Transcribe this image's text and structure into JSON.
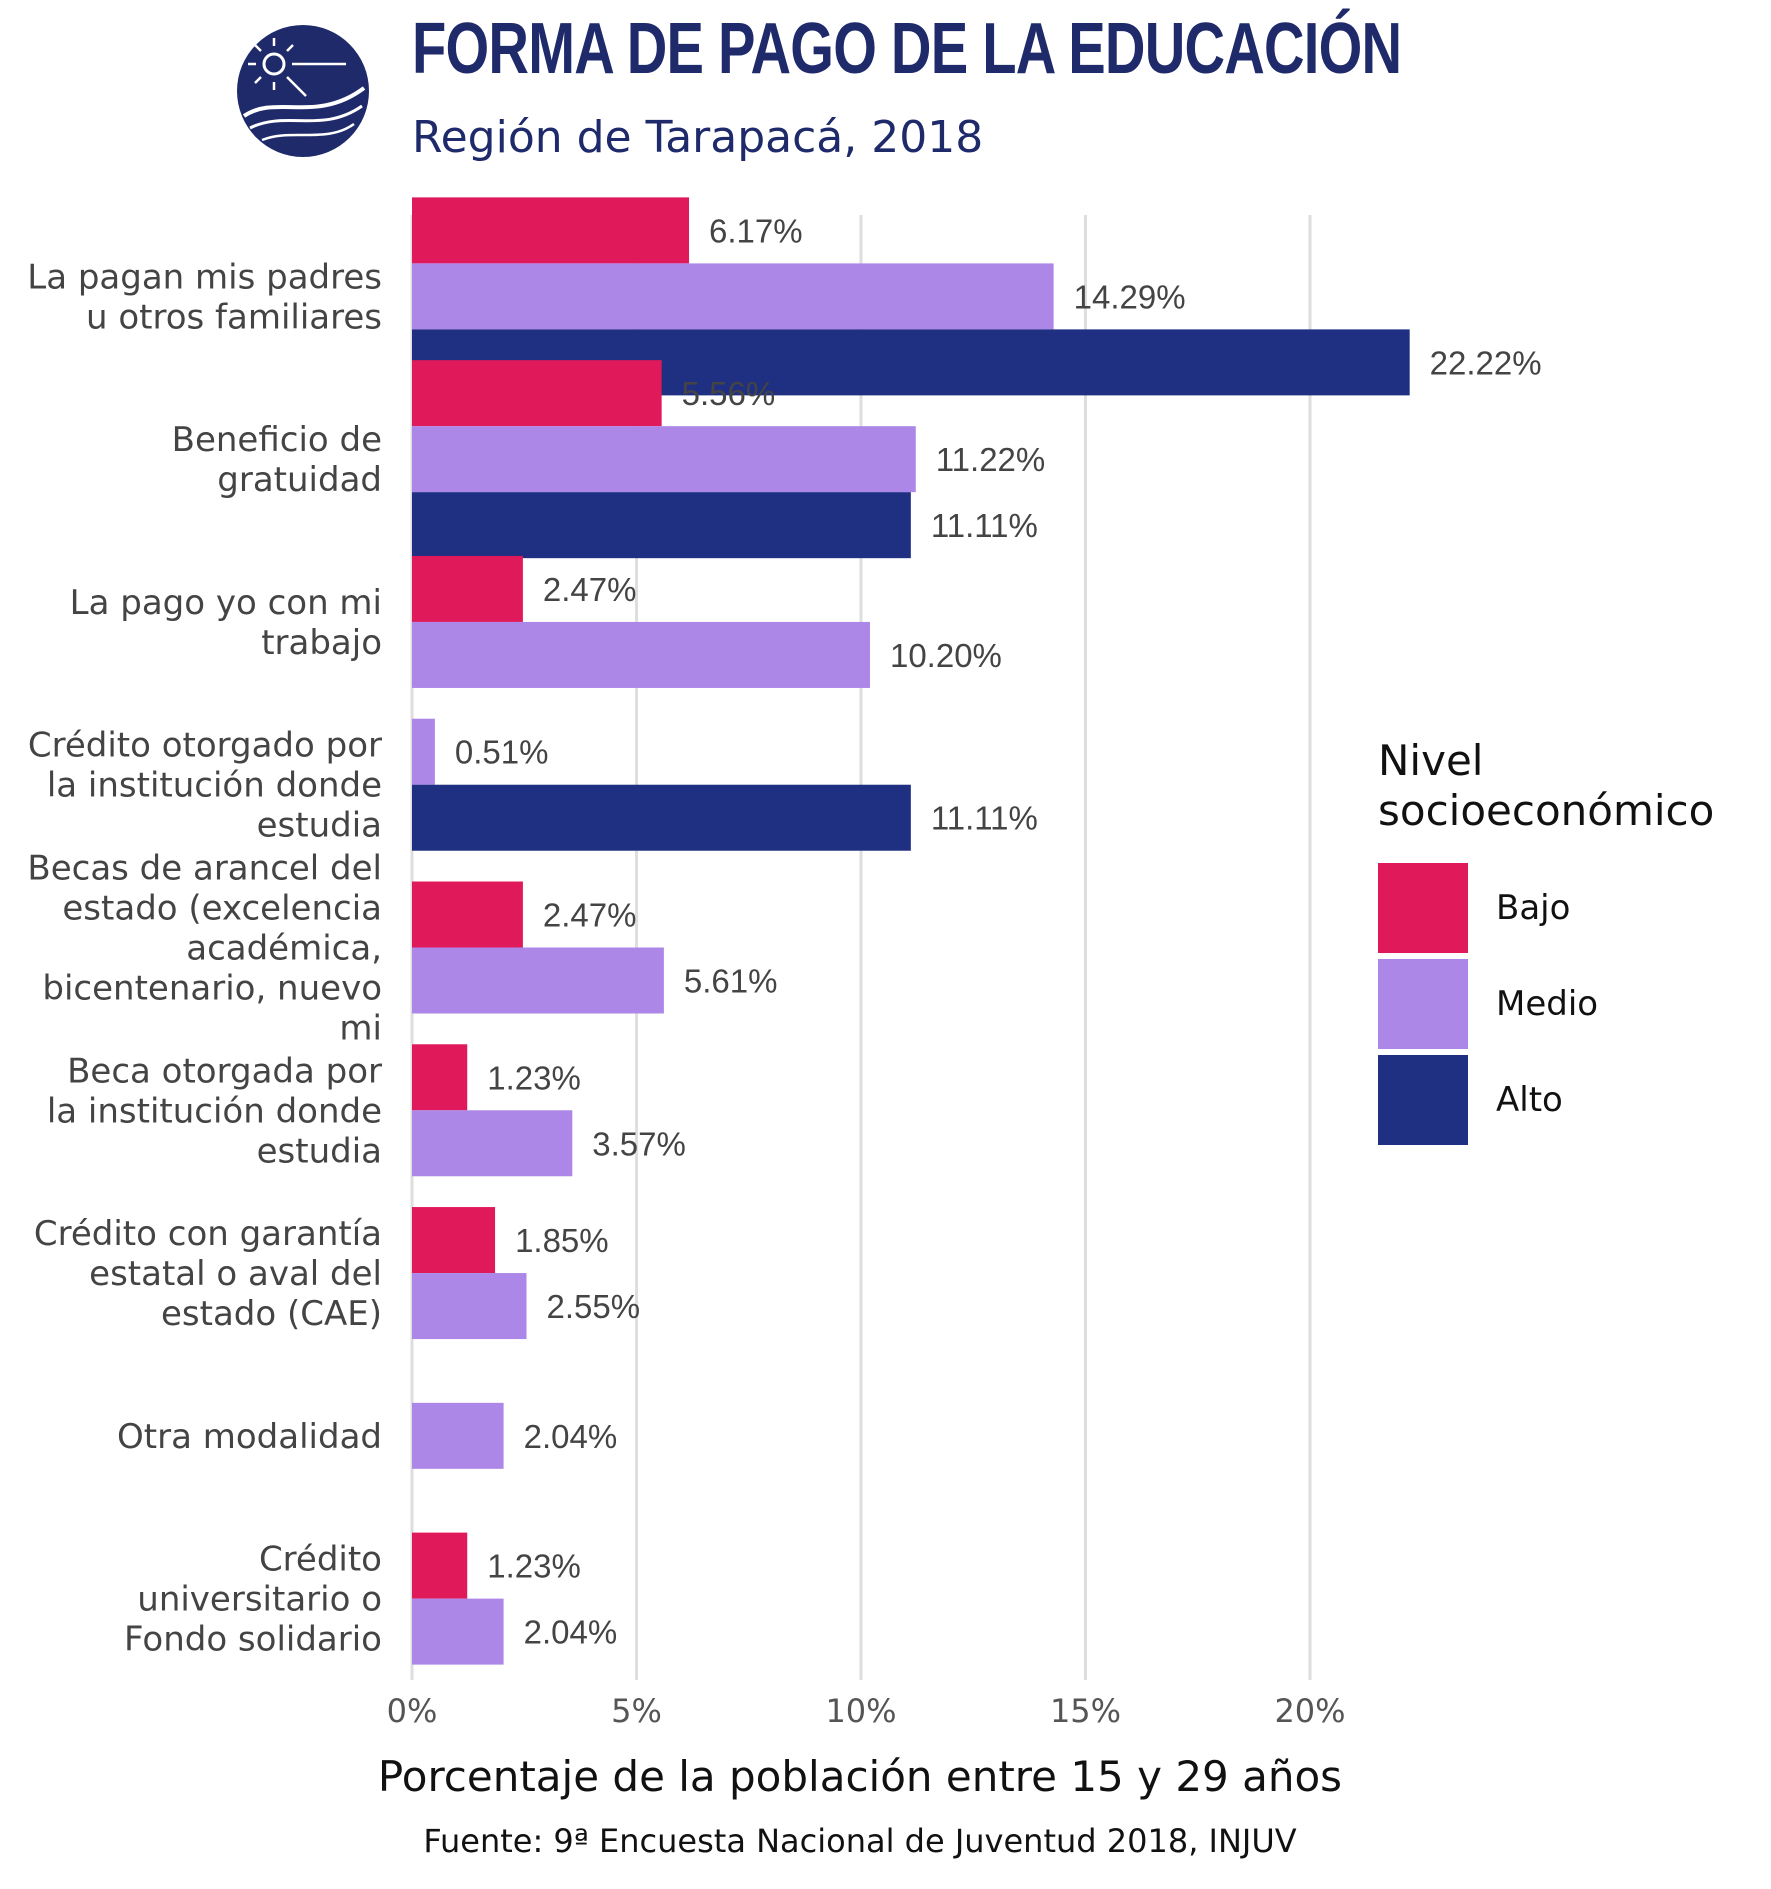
{
  "header": {
    "title": "FORMA DE PAGO DE LA EDUCACIÓN",
    "subtitle": "Región de Tarapacá, 2018",
    "logo_icon": "injuv-logo-icon"
  },
  "legend": {
    "title_line1": "Nivel",
    "title_line2": "socioeconómico",
    "items": [
      {
        "label": "Bajo",
        "color": "#e0195a"
      },
      {
        "label": "Medio",
        "color": "#ad87e8"
      },
      {
        "label": "Alto",
        "color": "#1f2f82"
      }
    ]
  },
  "footer": {
    "xlabel": "Porcentaje de la población entre 15 y 29 años",
    "source": "Fuente: 9ª Encuesta Nacional de Juventud 2018, INJUV"
  },
  "chart_data": {
    "type": "bar",
    "orientation": "horizontal",
    "title": "FORMA DE PAGO DE LA EDUCACIÓN",
    "subtitle": "Región de Tarapacá, 2018",
    "xlabel": "Porcentaje de la población entre 15 y 29 años",
    "ylabel": "",
    "xlim": [
      0,
      24
    ],
    "xticks": [
      0,
      5,
      10,
      15,
      20
    ],
    "xtick_labels": [
      "0%",
      "5%",
      "10%",
      "15%",
      "20%"
    ],
    "grid": true,
    "legend_position": "right",
    "categories": [
      {
        "lines": [
          "La pagan mis padres",
          "u otros familiares"
        ]
      },
      {
        "lines": [
          "Beneficio de",
          "gratuidad"
        ]
      },
      {
        "lines": [
          "La pago yo con mi",
          "trabajo"
        ]
      },
      {
        "lines": [
          "Crédito otorgado por",
          "la institución donde",
          "estudia"
        ]
      },
      {
        "lines": [
          "Becas de arancel del",
          "estado (excelencia",
          "académica,",
          "bicentenario, nuevo",
          "mi"
        ]
      },
      {
        "lines": [
          "Beca otorgada por",
          "la institución donde",
          "estudia"
        ]
      },
      {
        "lines": [
          "Crédito con garantía",
          "estatal o aval del",
          "estado (CAE)"
        ]
      },
      {
        "lines": [
          "Otra modalidad"
        ]
      },
      {
        "lines": [
          "Crédito",
          "universitario o",
          "Fondo solidario"
        ]
      }
    ],
    "series": [
      {
        "name": "Bajo",
        "color": "#e0195a",
        "values": [
          6.17,
          5.56,
          2.47,
          null,
          2.47,
          1.23,
          1.85,
          null,
          1.23
        ],
        "labels": [
          "6.17%",
          "5.56%",
          "2.47%",
          null,
          "2.47%",
          "1.23%",
          "1.85%",
          null,
          "1.23%"
        ]
      },
      {
        "name": "Medio",
        "color": "#ad87e8",
        "values": [
          14.29,
          11.22,
          10.2,
          0.51,
          5.61,
          3.57,
          2.55,
          2.04,
          2.04
        ],
        "labels": [
          "14.29%",
          "11.22%",
          "10.20%",
          "0.51%",
          "5.61%",
          "3.57%",
          "2.55%",
          "2.04%",
          "2.04%"
        ]
      },
      {
        "name": "Alto",
        "color": "#1f2f82",
        "values": [
          22.22,
          11.11,
          null,
          11.11,
          null,
          null,
          null,
          null,
          null
        ],
        "labels": [
          "22.22%",
          "11.11%",
          null,
          "11.11%",
          null,
          null,
          null,
          null,
          null
        ]
      }
    ]
  }
}
